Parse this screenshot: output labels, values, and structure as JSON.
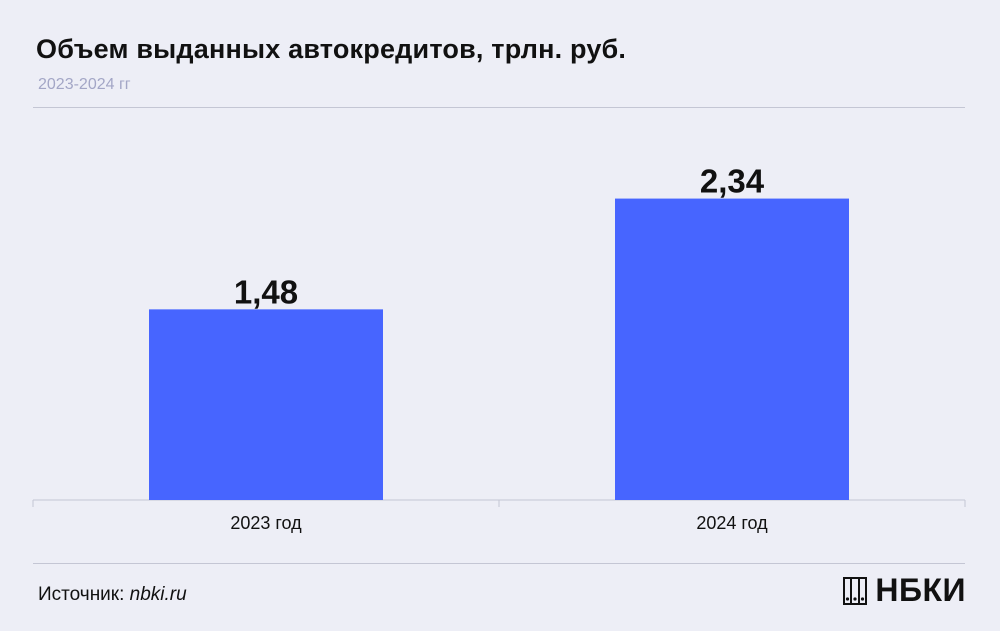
{
  "header": {
    "title": "Объем выданных автокредитов, трлн. руб.",
    "subtitle": "2023-2024 гг"
  },
  "footer": {
    "source_label": "Источник:",
    "source_url": "nbki.ru",
    "logo_text": "НБКИ"
  },
  "colors": {
    "bar": "#4765ff",
    "background": "#edeef6",
    "axis": "#c4c6d4",
    "text": "#111111"
  },
  "chart_data": {
    "type": "bar",
    "categories": [
      "2023 год",
      "2024 год"
    ],
    "values": [
      1.48,
      2.34
    ],
    "value_labels": [
      "1,48",
      "2,34"
    ],
    "title": "Объем выданных автокредитов, трлн. руб.",
    "subtitle": "2023-2024 гг",
    "ylim": [
      0,
      2.95
    ],
    "grid": false,
    "legend": "none"
  }
}
